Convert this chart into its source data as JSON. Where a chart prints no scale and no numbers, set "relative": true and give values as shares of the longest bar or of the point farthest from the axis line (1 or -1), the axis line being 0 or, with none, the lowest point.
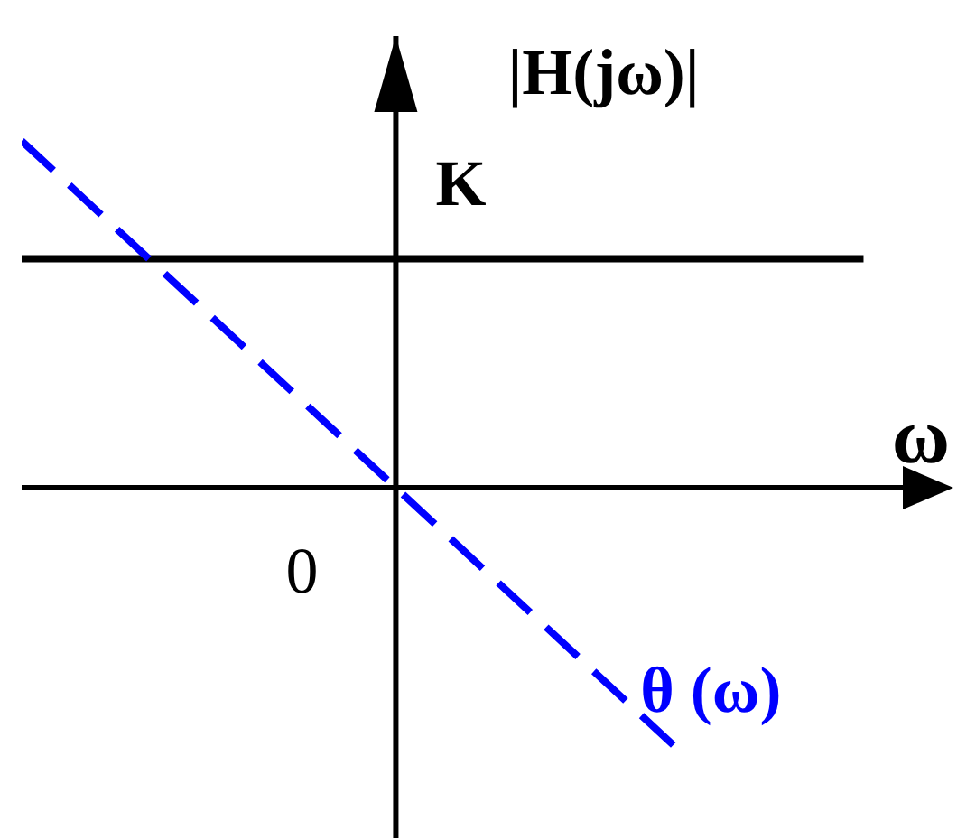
{
  "chart_data": {
    "type": "line",
    "relative": true,
    "xlabel": "ω",
    "ylabel": "|H(jω)|",
    "marker": "none",
    "annotations": [
      "0"
    ],
    "categories": [
      null,
      null,
      null,
      null,
      null,
      null,
      null,
      null,
      null,
      null
    ],
    "series": [
      {
        "name": "K",
        "color": "#000000",
        "line_style": "solid",
        "values": [
          0.66,
          0.66,
          0.66,
          0.66,
          0.66,
          0.66,
          0.66,
          0.66,
          0.66,
          0.66
        ]
      },
      {
        "name": "θ (ω)",
        "color": "#0000ff",
        "line_style": "dashed",
        "values": [
          1.0,
          0.75,
          0.5,
          0.25,
          0,
          -0.25,
          -0.5,
          -0.75,
          null,
          null
        ]
      }
    ]
  }
}
